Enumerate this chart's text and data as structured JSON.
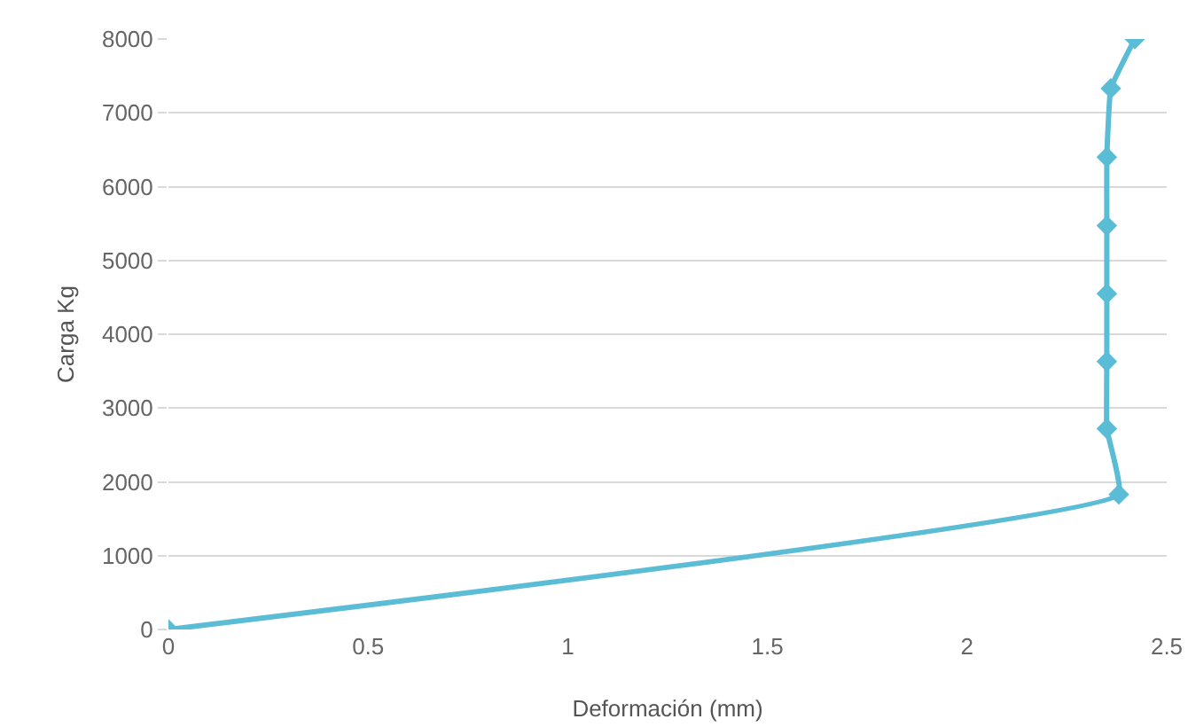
{
  "chart_data": {
    "type": "line",
    "xlabel": "Deformación (mm)",
    "ylabel": "Carga Kg",
    "series": [
      {
        "color": "#5bbcd6",
        "x": [
          0,
          2.38,
          2.35,
          2.35,
          2.35,
          2.35,
          2.35,
          2.36,
          2.42
        ],
        "values": [
          0,
          1830,
          2720,
          3630,
          4550,
          5470,
          6400,
          7330,
          8000
        ]
      }
    ],
    "xlim": [
      0,
      2.5
    ],
    "xticks": [
      0,
      0.5,
      1,
      1.5,
      2,
      2.5
    ],
    "ylim": [
      0,
      8000
    ],
    "yticks": [
      0,
      1000,
      2000,
      3000,
      4000,
      5000,
      6000,
      7000,
      8000
    ],
    "grid": "y",
    "marker": "diamond",
    "line_style": "solid"
  }
}
